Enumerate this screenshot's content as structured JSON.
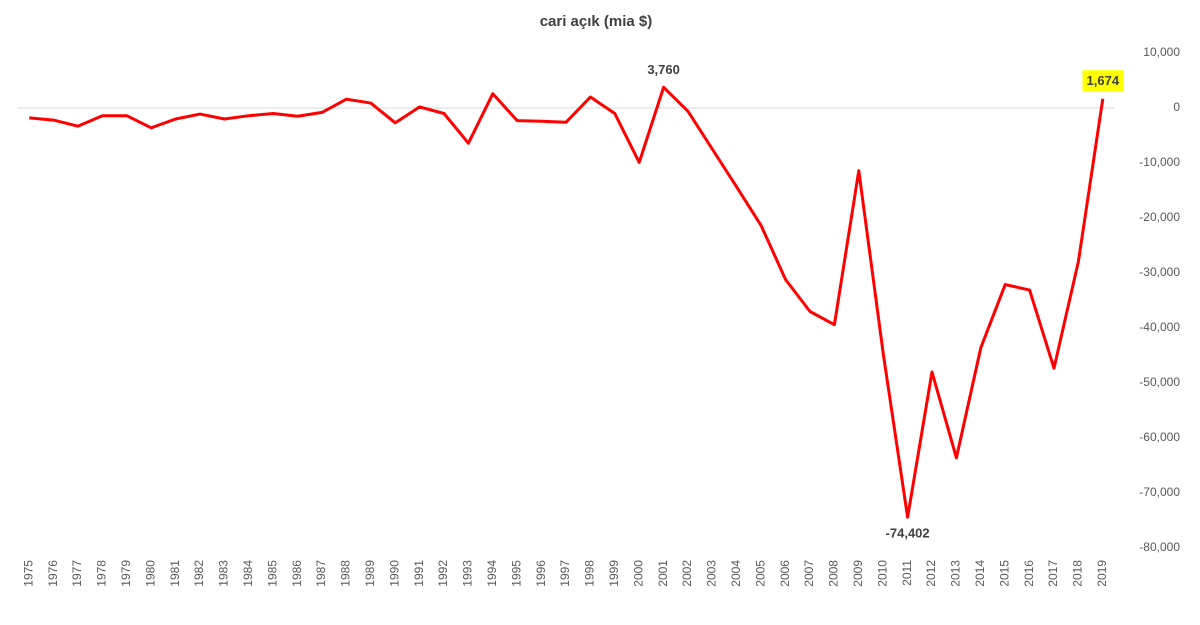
{
  "chart_data": {
    "type": "line",
    "title": "cari açık (mia $)",
    "categories": [
      "1975",
      "1976",
      "1977",
      "1978",
      "1979",
      "1980",
      "1981",
      "1982",
      "1983",
      "1984",
      "1985",
      "1986",
      "1987",
      "1988",
      "1989",
      "1990",
      "1991",
      "1992",
      "1993",
      "1994",
      "1995",
      "1996",
      "1997",
      "1998",
      "1999",
      "2000",
      "2001",
      "2002",
      "2003",
      "2004",
      "2005",
      "2006",
      "2007",
      "2008",
      "2009",
      "2010",
      "2011",
      "2012",
      "2013",
      "2014",
      "2015",
      "2016",
      "2017",
      "2018",
      "2019"
    ],
    "series": [
      {
        "color": "#ff0000",
        "values": [
          -1800,
          -2200,
          -3300,
          -1400,
          -1400,
          -3600,
          -2000,
          -1100,
          -2000,
          -1400,
          -1000,
          -1500,
          -800,
          1600,
          900,
          -2700,
          200,
          -1000,
          -6400,
          2600,
          -2300,
          -2400,
          -2600,
          2000,
          -1000,
          -9900,
          3760,
          -600,
          -7500,
          -14400,
          -21400,
          -31200,
          -37000,
          -39400,
          -11400,
          -44600,
          -74402,
          -48000,
          -63600,
          -43600,
          -32100,
          -33100,
          -47300,
          -27900,
          1674
        ],
        "value_labels": [
          null,
          null,
          null,
          null,
          null,
          null,
          null,
          null,
          null,
          null,
          null,
          null,
          null,
          null,
          null,
          null,
          null,
          null,
          null,
          null,
          null,
          null,
          null,
          null,
          null,
          null,
          "3,760",
          null,
          null,
          null,
          null,
          null,
          null,
          null,
          null,
          null,
          "-74,402",
          null,
          null,
          null,
          null,
          null,
          null,
          null,
          "1,674"
        ]
      }
    ],
    "highlight_color": "#ffff00",
    "ylim": [
      -80000,
      10000
    ],
    "yticks": [
      {
        "value": 10000,
        "label": "10,000"
      },
      0,
      {
        "value": -10000,
        "label": "-10,000"
      },
      {
        "value": -20000,
        "label": "-20,000"
      },
      {
        "value": -30000,
        "label": "-30,000"
      },
      {
        "value": -40000,
        "label": "-40,000"
      },
      {
        "value": -50000,
        "label": "-50,000"
      },
      {
        "value": -60000,
        "label": "-60,000"
      },
      {
        "value": -70000,
        "label": "-70,000"
      },
      {
        "value": -80000,
        "label": "-80,000"
      }
    ],
    "grid": false
  }
}
